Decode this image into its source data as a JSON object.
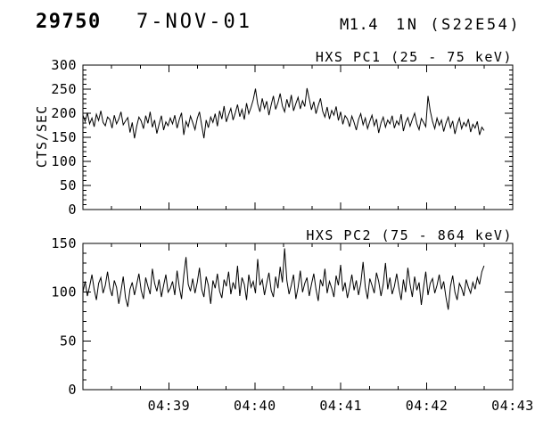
{
  "header": {
    "flare_number": "29750",
    "date": "7-NOV-01",
    "goes_class": "M1.4",
    "optical_class_location": "1N (S22E54)"
  },
  "colors": {
    "foreground": "#000000",
    "background": "#ffffff"
  },
  "chart_data": [
    {
      "type": "line",
      "title": "HXS PC1 (25 - 75 keV)",
      "ylabel": "CTS/SEC",
      "ylim": [
        0,
        300
      ],
      "ytick_values": [
        0,
        50,
        100,
        150,
        200,
        250,
        300
      ],
      "y_minor_step": 10,
      "xlim": [
        0,
        300
      ],
      "xtick_values": [
        60,
        120,
        180,
        240,
        300
      ],
      "xtick_labels": [
        "04:39",
        "04:40",
        "04:41",
        "04:42",
        "04:43"
      ],
      "x_minor_step": 20,
      "show_x_labels": false,
      "x_start": 0,
      "x_end": 280,
      "values": [
        196,
        183,
        201,
        178,
        190,
        172,
        198,
        185,
        205,
        181,
        174,
        192,
        187,
        169,
        196,
        178,
        188,
        203,
        176,
        184,
        191,
        160,
        181,
        148,
        173,
        192,
        184,
        168,
        195,
        179,
        203,
        171,
        186,
        158,
        177,
        195,
        165,
        182,
        174,
        190,
        178,
        196,
        169,
        187,
        201,
        155,
        183,
        172,
        194,
        181,
        166,
        189,
        203,
        175,
        148,
        186,
        170,
        192,
        181,
        199,
        173,
        205,
        188,
        215,
        182,
        197,
        210,
        186,
        201,
        218,
        193,
        208,
        187,
        221,
        199,
        212,
        228,
        251,
        219,
        203,
        231,
        210,
        225,
        196,
        217,
        236,
        208,
        222,
        241,
        215,
        203,
        229,
        212,
        238,
        205,
        220,
        233,
        209,
        226,
        214,
        252,
        230,
        207,
        224,
        199,
        216,
        231,
        204,
        192,
        213,
        188,
        206,
        196,
        214,
        185,
        203,
        177,
        195,
        188,
        172,
        194,
        181,
        165,
        187,
        199,
        176,
        190,
        168,
        183,
        196,
        174,
        188,
        159,
        180,
        192,
        171,
        186,
        178,
        195,
        169,
        184,
        176,
        198,
        163,
        181,
        191,
        173,
        187,
        200,
        178,
        166,
        189,
        181,
        172,
        236,
        205,
        183,
        168,
        190,
        175,
        186,
        162,
        179,
        192,
        170,
        184,
        157,
        176,
        190,
        168,
        181,
        173,
        188,
        161,
        177,
        169,
        183,
        155,
        171,
        164
      ]
    },
    {
      "type": "line",
      "title": "HXS PC2 (75 - 864 keV)",
      "ylabel": "",
      "ylim": [
        0,
        150
      ],
      "ytick_values": [
        0,
        50,
        100,
        150
      ],
      "y_minor_step": 10,
      "xlim": [
        0,
        300
      ],
      "xtick_values": [
        60,
        120,
        180,
        240,
        300
      ],
      "xtick_labels": [
        "04:39",
        "04:40",
        "04:41",
        "04:42",
        "04:43"
      ],
      "x_minor_step": 20,
      "show_x_labels": true,
      "x_start": 0,
      "x_end": 280,
      "values": [
        100,
        111,
        96,
        106,
        118,
        103,
        92,
        109,
        115,
        99,
        107,
        121,
        104,
        96,
        112,
        105,
        88,
        101,
        116,
        94,
        85,
        103,
        110,
        97,
        108,
        119,
        102,
        93,
        115,
        106,
        98,
        124,
        109,
        101,
        113,
        95,
        107,
        118,
        100,
        104,
        111,
        97,
        122,
        105,
        93,
        117,
        136,
        108,
        101,
        114,
        99,
        110,
        125,
        103,
        95,
        116,
        107,
        88,
        112,
        104,
        119,
        101,
        94,
        113,
        106,
        121,
        98,
        110,
        103,
        127,
        96,
        115,
        108,
        92,
        118,
        105,
        111,
        99,
        134,
        107,
        113,
        97,
        109,
        120,
        102,
        95,
        116,
        104,
        126,
        110,
        145,
        112,
        98,
        107,
        118,
        93,
        105,
        122,
        100,
        109,
        115,
        96,
        108,
        119,
        103,
        91,
        113,
        106,
        124,
        99,
        111,
        104,
        95,
        117,
        107,
        128,
        101,
        110,
        94,
        105,
        118,
        102,
        112,
        97,
        109,
        131,
        105,
        93,
        114,
        107,
        99,
        120,
        111,
        96,
        108,
        130,
        103,
        115,
        98,
        106,
        119,
        104,
        92,
        113,
        100,
        125,
        108,
        95,
        116,
        102,
        110,
        87,
        105,
        121,
        97,
        109,
        114,
        99,
        107,
        118,
        103,
        111,
        95,
        82,
        106,
        117,
        100,
        92,
        109,
        104,
        96,
        113,
        105,
        99,
        110,
        103,
        115,
        108,
        121,
        127
      ]
    }
  ]
}
